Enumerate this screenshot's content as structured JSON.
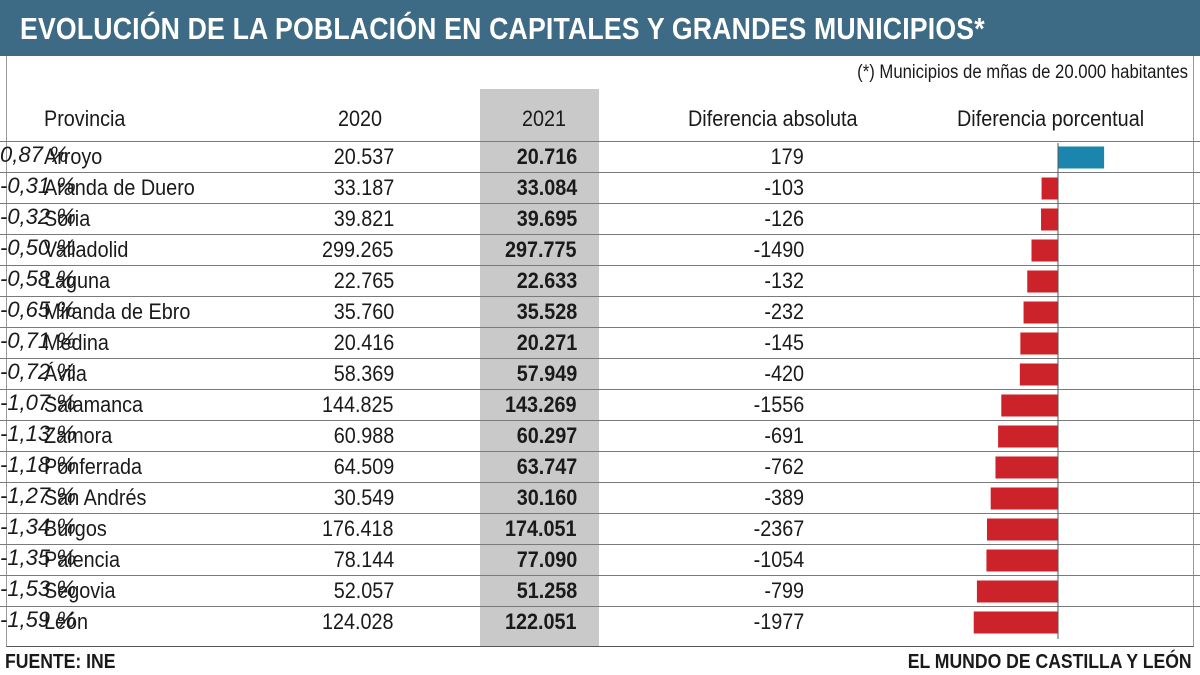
{
  "title": "EVOLUCIÓN DE LA POBLACIÓN EN CAPITALES Y GRANDES MUNICIPIOS*",
  "note": "(*) Municipios de mñas de 20.000 habitantes",
  "headers": {
    "provincia": "Provincia",
    "y2020": "2020",
    "y2021": "2021",
    "abs": "Diferencia absoluta",
    "pct": "Diferencia porcentual"
  },
  "colors": {
    "title_bg": "#3d6b85",
    "positive": "#1a86ad",
    "negative": "#cc2229",
    "highlight_col": "#c9c9c9"
  },
  "chart_data": {
    "type": "table",
    "title": "EVOLUCIÓN DE LA POBLACIÓN EN CAPITALES Y GRANDES MUNICIPIOS*",
    "columns": [
      "Provincia",
      "2020",
      "2021",
      "Diferencia absoluta",
      "Diferencia porcentual"
    ],
    "rows": [
      {
        "provincia": "Arroyo",
        "v2020": "20.537",
        "v2021": "20.716",
        "abs": "179",
        "pct_label": "0,87 %",
        "pct": 0.87
      },
      {
        "provincia": "Aranda de Duero",
        "v2020": "33.187",
        "v2021": "33.084",
        "abs": "-103",
        "pct_label": "-0,31 %",
        "pct": -0.31
      },
      {
        "provincia": "Soria",
        "v2020": "39.821",
        "v2021": "39.695",
        "abs": "-126",
        "pct_label": "-0,32 %",
        "pct": -0.32
      },
      {
        "provincia": "Valladolid",
        "v2020": "299.265",
        "v2021": "297.775",
        "abs": "-1490",
        "pct_label": "-0,50 %",
        "pct": -0.5
      },
      {
        "provincia": "Laguna",
        "v2020": "22.765",
        "v2021": "22.633",
        "abs": "-132",
        "pct_label": "-0,58 %",
        "pct": -0.58
      },
      {
        "provincia": "Miranda de Ebro",
        "v2020": "35.760",
        "v2021": "35.528",
        "abs": "-232",
        "pct_label": "-0,65 %",
        "pct": -0.65
      },
      {
        "provincia": "Medina",
        "v2020": "20.416",
        "v2021": "20.271",
        "abs": "-145",
        "pct_label": "-0,71 %",
        "pct": -0.71
      },
      {
        "provincia": "Ávila",
        "v2020": "58.369",
        "v2021": "57.949",
        "abs": "-420",
        "pct_label": "-0,72 %",
        "pct": -0.72
      },
      {
        "provincia": "Salamanca",
        "v2020": "144.825",
        "v2021": "143.269",
        "abs": "-1556",
        "pct_label": "-1,07 %",
        "pct": -1.07
      },
      {
        "provincia": "Zamora",
        "v2020": "60.988",
        "v2021": "60.297",
        "abs": "-691",
        "pct_label": "-1,13 %",
        "pct": -1.13
      },
      {
        "provincia": "Ponferrada",
        "v2020": "64.509",
        "v2021": "63.747",
        "abs": "-762",
        "pct_label": "-1,18 %",
        "pct": -1.18
      },
      {
        "provincia": "San Andrés",
        "v2020": "30.549",
        "v2021": "30.160",
        "abs": "-389",
        "pct_label": "-1,27 %",
        "pct": -1.27
      },
      {
        "provincia": "Burgos",
        "v2020": "176.418",
        "v2021": "174.051",
        "abs": "-2367",
        "pct_label": "-1,34 %",
        "pct": -1.34
      },
      {
        "provincia": "Palencia",
        "v2020": "78.144",
        "v2021": "77.090",
        "abs": "-1054",
        "pct_label": "-1,35 %",
        "pct": -1.35
      },
      {
        "provincia": "Segovia",
        "v2020": "52.057",
        "v2021": "51.258",
        "abs": "-799",
        "pct_label": "-1,53 %",
        "pct": -1.53
      },
      {
        "provincia": "León",
        "v2020": "124.028",
        "v2021": "122.051",
        "abs": "-1977",
        "pct_label": "-1,59 %",
        "pct": -1.59
      }
    ]
  },
  "footer": {
    "source": "FUENTE:  INE",
    "brand": "EL MUNDO DE CASTILLA Y LEÓN"
  }
}
